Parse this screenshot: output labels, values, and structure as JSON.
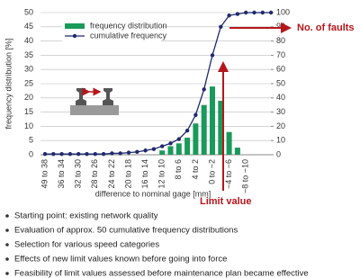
{
  "chart_data": {
    "type": "bar",
    "categories": [
      "49 to 38",
      null,
      "36 to 34",
      null,
      "32 to 30",
      null,
      "28 to 26",
      null,
      "24 to 22",
      null,
      "20 to 18",
      null,
      "16 to 14",
      null,
      "12 to 10",
      null,
      "8 to 6",
      null,
      "4 to 2",
      null,
      "0 to −2",
      null,
      "−4 to −6",
      null,
      "−8 to −10",
      null,
      null,
      null
    ],
    "series": [
      {
        "name": "frequency distribution",
        "type": "bar",
        "color": "#1a9a5a",
        "values": [
          0,
          0,
          0,
          0,
          0,
          0,
          0,
          0,
          0,
          0,
          0,
          0,
          0,
          0,
          1.5,
          3,
          4,
          6,
          11,
          17.5,
          24,
          19,
          8,
          2.5,
          0,
          0,
          0,
          0
        ]
      },
      {
        "name": "cumulative frequency",
        "type": "line",
        "axis": "y2",
        "color": "#1f2a6e",
        "values": [
          0.5,
          0.5,
          0.5,
          0.5,
          0.5,
          0.5,
          0.5,
          0.5,
          1,
          1,
          1.5,
          2,
          3,
          4,
          6,
          8,
          11,
          17,
          28,
          46,
          70,
          90,
          98,
          99,
          100,
          100,
          100,
          100
        ]
      }
    ],
    "ylabel": "frequency distribution [%]",
    "xlabel": "difference to nominal gage [mm]",
    "ylim": [
      0,
      50
    ],
    "yticks": [
      0,
      5,
      10,
      15,
      20,
      25,
      30,
      35,
      40,
      45,
      50
    ],
    "y2lim": [
      0,
      100
    ],
    "y2ticks": [
      0,
      10,
      20,
      30,
      40,
      50,
      60,
      70,
      80,
      90,
      100
    ],
    "grid": true,
    "legend": "upper left",
    "annotations": [
      "No. of faults",
      "Limit value"
    ]
  },
  "bullets": [
    "Starting point:  existing network quality",
    "Evaluation of approx. 50 cumulative frequency distributions",
    "Selection for various speed categories",
    "Effects of new limit values known before going into force",
    "Feasibility of limit values assessed before maintenance plan became effective"
  ]
}
